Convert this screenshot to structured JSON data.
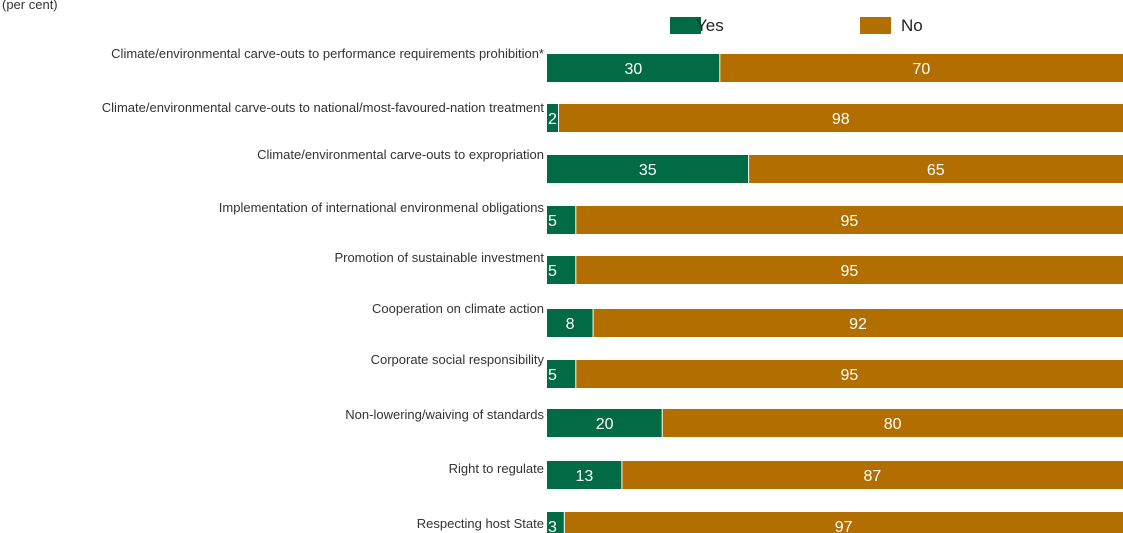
{
  "chart_data": {
    "type": "bar",
    "orientation": "horizontal",
    "stacked": true,
    "unit_label": "(per cent)",
    "categories": [
      "Climate/environmental carve-outs to performance requirements prohibition*",
      "Climate/environmental carve-outs to national/most-favoured-nation treatment",
      "Climate/environmental carve-outs to expropriation",
      "Implementation of international environmenal obligations",
      "Promotion of sustainable investment",
      "Cooperation on climate action",
      "Corporate social responsibility",
      "Non-lowering/waiving of standards",
      "Right to regulate",
      "Respecting host State"
    ],
    "series": [
      {
        "name": "Yes",
        "color": "#006b45",
        "values": [
          30,
          2,
          35,
          5,
          5,
          8,
          5,
          20,
          13,
          3
        ]
      },
      {
        "name": "No",
        "color": "#b36e00",
        "values": [
          70,
          98,
          65,
          95,
          95,
          92,
          95,
          80,
          87,
          97
        ]
      }
    ],
    "xlim": [
      0,
      100
    ],
    "legend_position": "top",
    "grid": false
  }
}
